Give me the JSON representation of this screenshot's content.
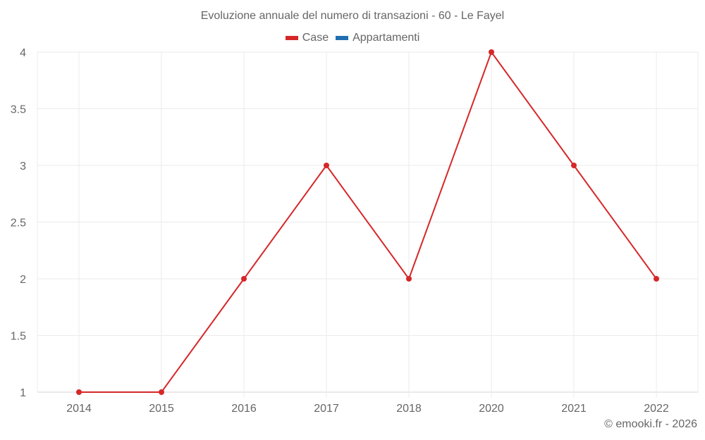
{
  "title": "Evoluzione annuale del numero di transazioni - 60 - Le Fayel",
  "legend": [
    {
      "label": "Case",
      "color": "#d62728"
    },
    {
      "label": "Appartamenti",
      "color": "#1f6fb0"
    }
  ],
  "credit": "© emooki.fr - 2026",
  "chart_data": {
    "type": "line",
    "title": "Evoluzione annuale del numero di transazioni - 60 - Le Fayel",
    "xlabel": "",
    "ylabel": "",
    "categories": [
      "2014",
      "2015",
      "2016",
      "2017",
      "2018",
      "2020",
      "2021",
      "2022"
    ],
    "series": [
      {
        "name": "Case",
        "color": "#d62728",
        "values": [
          1,
          1,
          2,
          3,
          2,
          4,
          3,
          2
        ]
      },
      {
        "name": "Appartamenti",
        "color": "#1f6fb0",
        "values": []
      }
    ],
    "ylim": [
      1,
      4
    ],
    "yticks": [
      "1",
      "1.5",
      "2",
      "2.5",
      "3",
      "3.5",
      "4"
    ],
    "grid": true,
    "legend_position": "top"
  }
}
